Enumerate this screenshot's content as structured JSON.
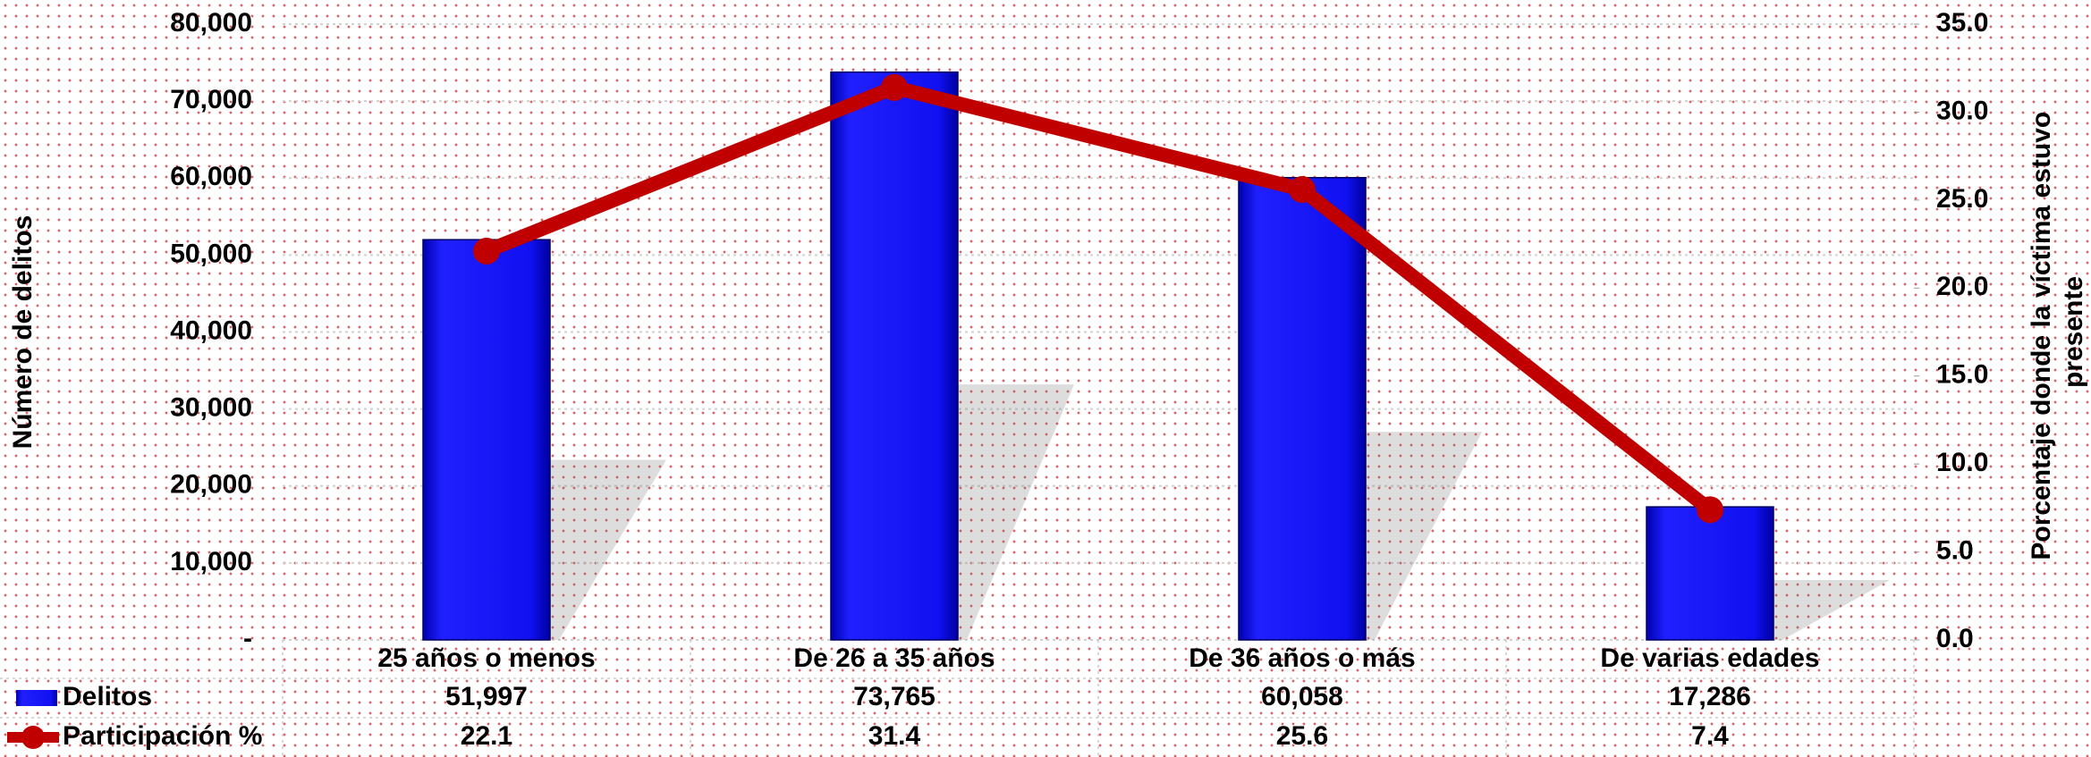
{
  "chart_data": {
    "type": "bar-line",
    "categories": [
      "25 años o menos",
      "De 26 a 35 años",
      "De 36 años o más",
      "De varias edades"
    ],
    "series": [
      {
        "name": "Delitos",
        "color": "#1010e8",
        "type": "bar",
        "values": [
          51997,
          73765,
          60058,
          17286
        ],
        "value_labels": [
          "51,997",
          "73,765",
          "60,058",
          "17,286"
        ]
      },
      {
        "name": "Participación %",
        "color": "#c00000",
        "type": "line",
        "axis": "y2",
        "values": [
          22.1,
          31.4,
          25.6,
          7.4
        ]
      }
    ],
    "ylabel": "Número de delitos",
    "y2label": "Porcentaje donde la víctima estuvo presente",
    "ylim": [
      0,
      80000
    ],
    "yticks": [
      {
        "value": 0,
        "label": "-"
      },
      {
        "value": 10000,
        "label": "10,000"
      },
      {
        "value": 20000,
        "label": "20,000"
      },
      {
        "value": 30000,
        "label": "30,000"
      },
      {
        "value": 40000,
        "label": "40,000"
      },
      {
        "value": 50000,
        "label": "50,000"
      },
      {
        "value": 60000,
        "label": "60,000"
      },
      {
        "value": 70000,
        "label": "70,000"
      },
      {
        "value": 80000,
        "label": "80,000"
      }
    ],
    "y2lim": [
      0,
      35
    ],
    "y2ticks": [
      {
        "value": 0,
        "label": "0.0"
      },
      {
        "value": 5,
        "label": "5.0"
      },
      {
        "value": 10,
        "label": "10.0"
      },
      {
        "value": 15,
        "label": "15.0"
      },
      {
        "value": 20,
        "label": "20.0"
      },
      {
        "value": 25,
        "label": "25.0"
      },
      {
        "value": 30,
        "label": "30.0"
      },
      {
        "value": 35,
        "label": "35.0"
      }
    ],
    "grid": true
  }
}
